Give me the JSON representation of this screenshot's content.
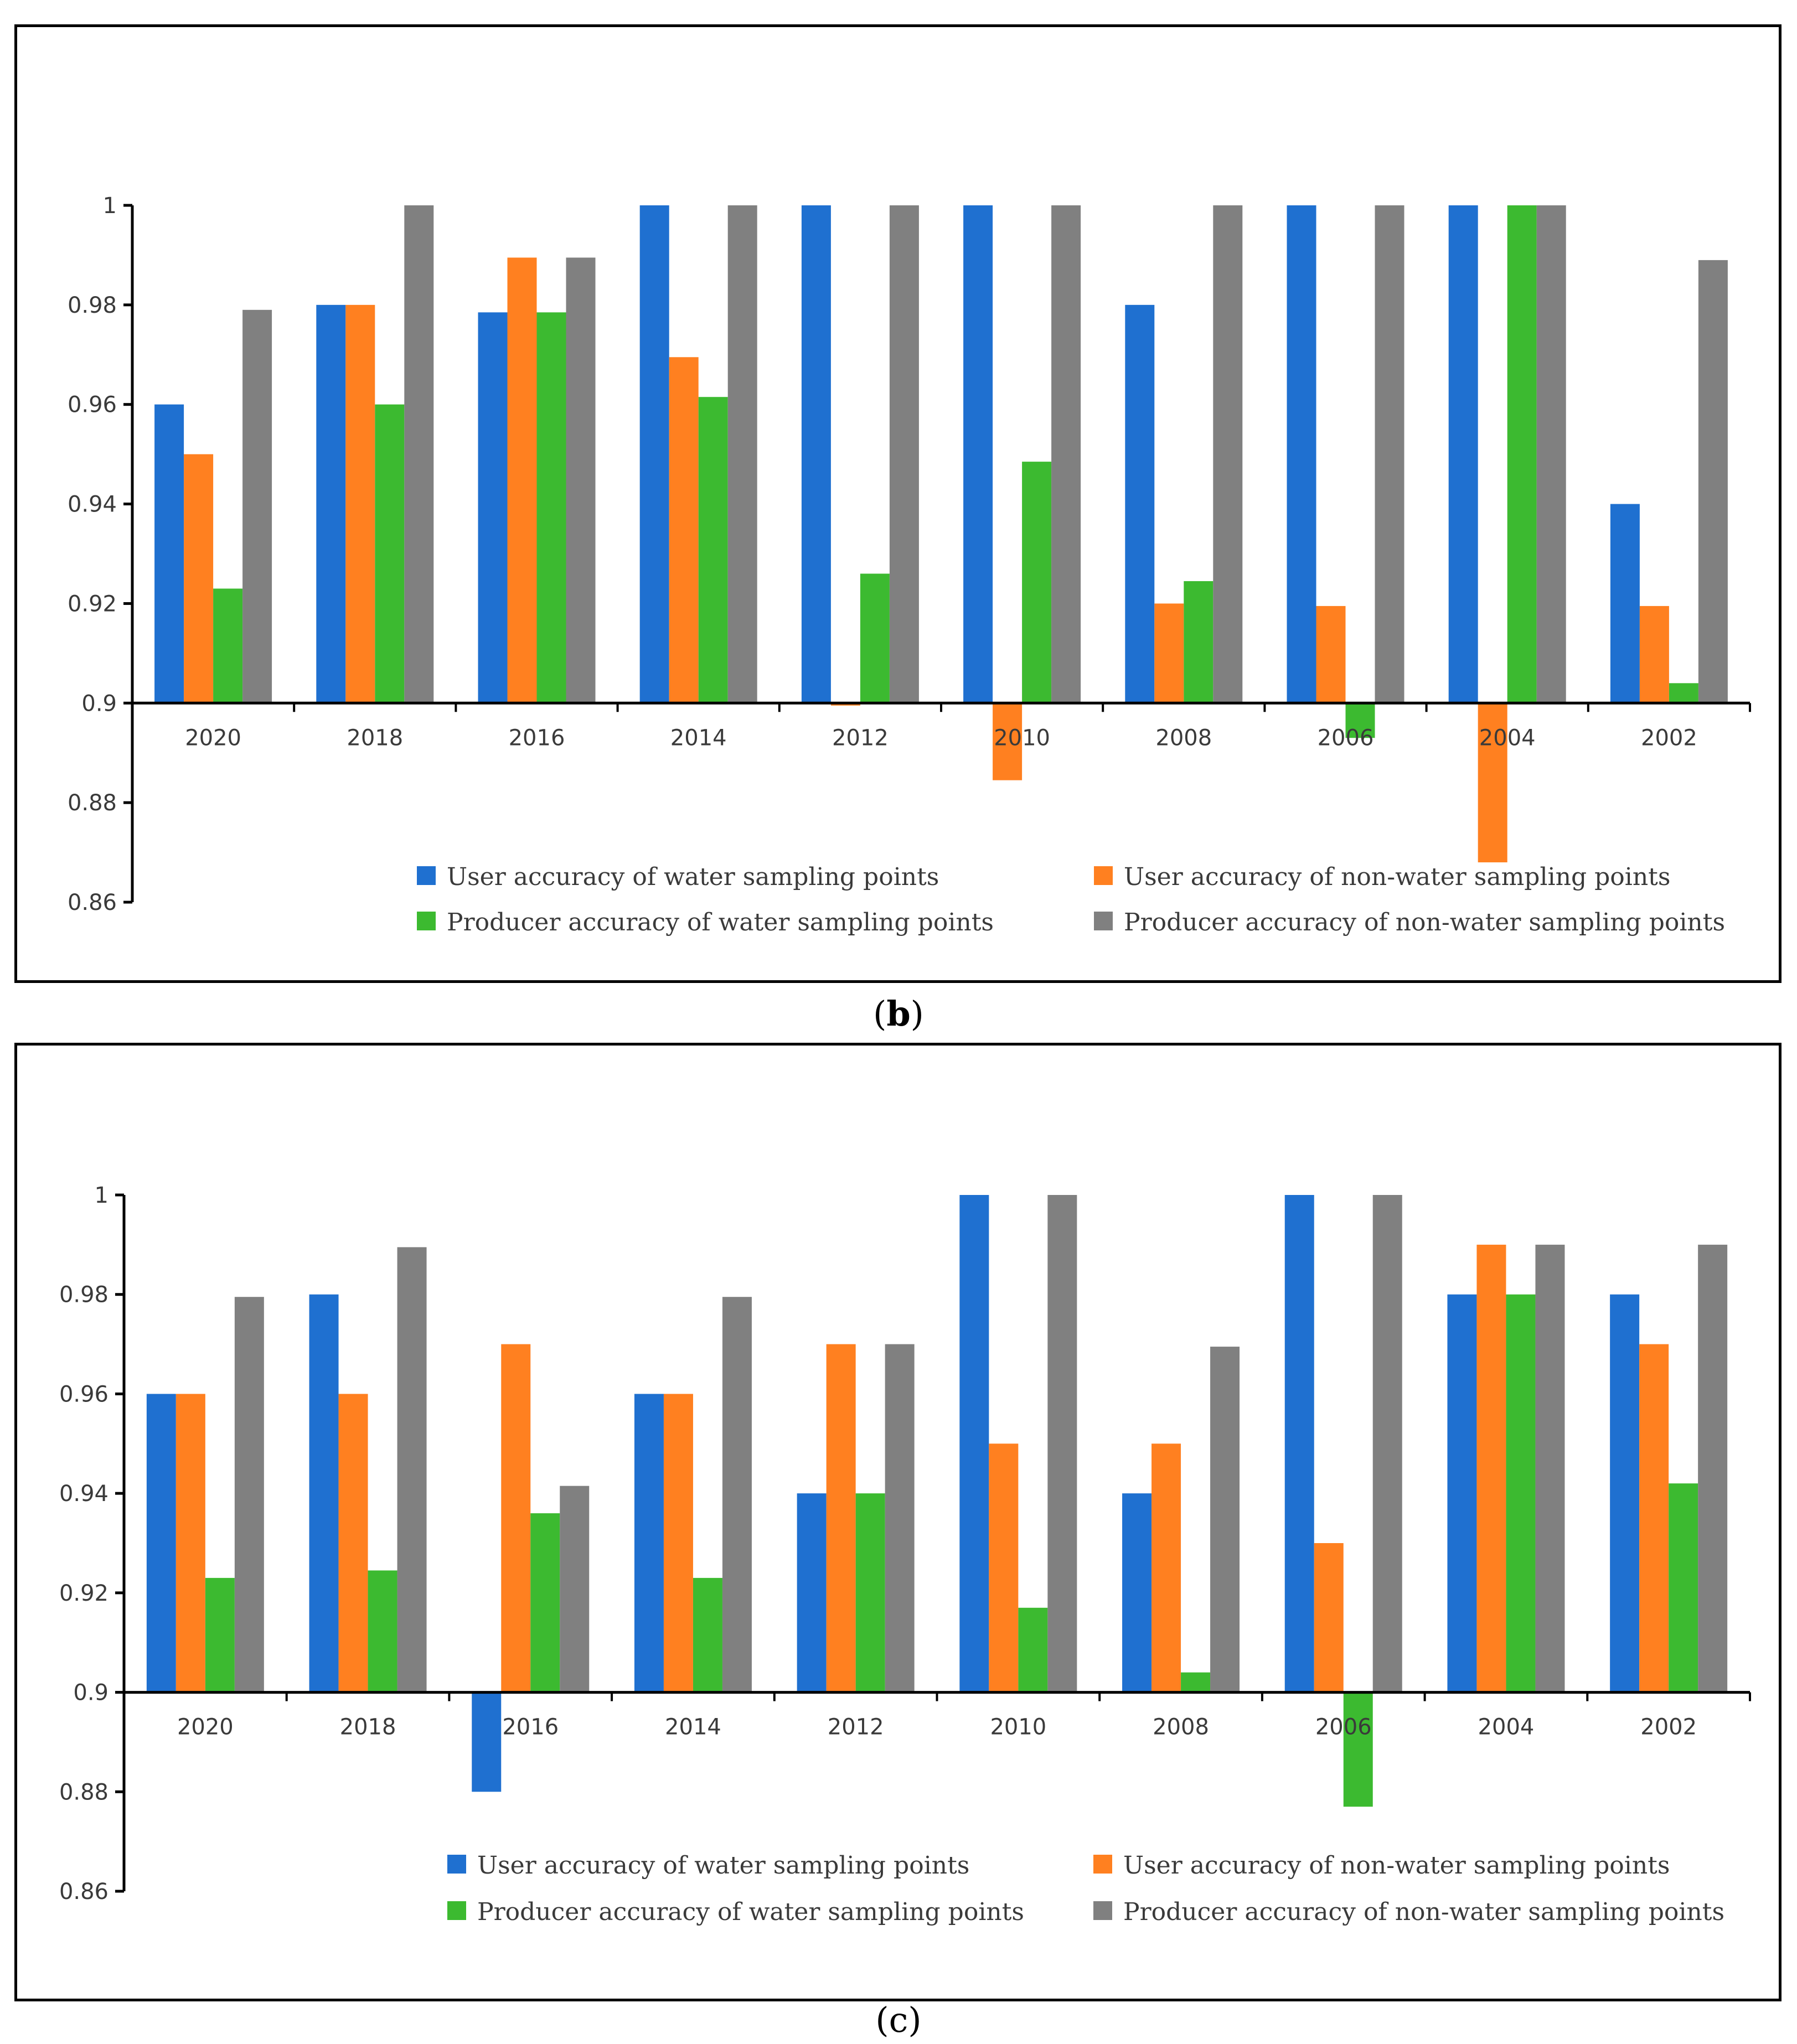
{
  "colors": {
    "water_user": "#1f70d0",
    "nonwater_user": "#ff8020",
    "water_producer": "#3cba30",
    "nonwater_producer": "#808080"
  },
  "legend": [
    "User accuracy of water sampling points",
    "User accuracy of non-water sampling points",
    "Producer accuracy of water sampling points",
    "Producer accuracy of non-water sampling points"
  ],
  "chart_data": [
    {
      "type": "bar",
      "caption_paren_open": "(",
      "caption_letter": "b",
      "caption_paren_close": ")",
      "categories": [
        "2020",
        "2018",
        "2016",
        "2014",
        "2012",
        "2010",
        "2008",
        "2006",
        "2004",
        "2002"
      ],
      "ylim": [
        0.86,
        1.0
      ],
      "yticks": [
        "0.86",
        "0.88",
        "0.9",
        "0.92",
        "0.94",
        "0.96",
        "0.98",
        "1"
      ],
      "baseline": 0.9,
      "legend_placement": "bottom",
      "series": [
        {
          "name": "User accuracy of water sampling points",
          "values": [
            0.96,
            0.98,
            0.9785,
            1.0,
            1.0,
            1.0,
            0.98,
            1.0,
            1.0,
            0.94
          ]
        },
        {
          "name": "User accuracy of non-water sampling points",
          "values": [
            0.95,
            0.98,
            0.9895,
            0.9695,
            0.8995,
            0.8845,
            0.92,
            0.9195,
            0.868,
            0.9195
          ]
        },
        {
          "name": "Producer accuracy of water sampling points",
          "values": [
            0.923,
            0.96,
            0.9785,
            0.9615,
            0.926,
            0.9485,
            0.9245,
            0.893,
            1.0,
            0.904
          ]
        },
        {
          "name": "Producer accuracy of non-water sampling points",
          "values": [
            0.979,
            1.0,
            0.9895,
            1.0,
            1.0,
            1.0,
            1.0,
            1.0,
            1.0,
            0.989
          ]
        }
      ]
    },
    {
      "type": "bar",
      "caption_paren_open": "(",
      "caption_letter": "c",
      "caption_paren_close": ")",
      "categories": [
        "2020",
        "2018",
        "2016",
        "2014",
        "2012",
        "2010",
        "2008",
        "2006",
        "2004",
        "2002"
      ],
      "ylim": [
        0.86,
        1.0
      ],
      "yticks": [
        "0.86",
        "0.88",
        "0.9",
        "0.92",
        "0.94",
        "0.96",
        "0.98",
        "1"
      ],
      "baseline": 0.9,
      "legend_placement": "bottom",
      "series": [
        {
          "name": "User accuracy of water sampling points",
          "values": [
            0.96,
            0.98,
            0.88,
            0.96,
            0.94,
            1.0,
            0.94,
            1.0,
            0.98,
            0.98
          ]
        },
        {
          "name": "User accuracy of non-water sampling points",
          "values": [
            0.96,
            0.96,
            0.97,
            0.96,
            0.97,
            0.95,
            0.95,
            0.93,
            0.99,
            0.97
          ]
        },
        {
          "name": "Producer accuracy of water sampling points",
          "values": [
            0.923,
            0.9245,
            0.936,
            0.923,
            0.94,
            0.917,
            0.904,
            0.877,
            0.98,
            0.942
          ]
        },
        {
          "name": "Producer accuracy of non-water sampling points",
          "values": [
            0.9795,
            0.9895,
            0.9415,
            0.9795,
            0.97,
            1.0,
            0.9695,
            1.0,
            0.99,
            0.99
          ]
        }
      ]
    }
  ]
}
